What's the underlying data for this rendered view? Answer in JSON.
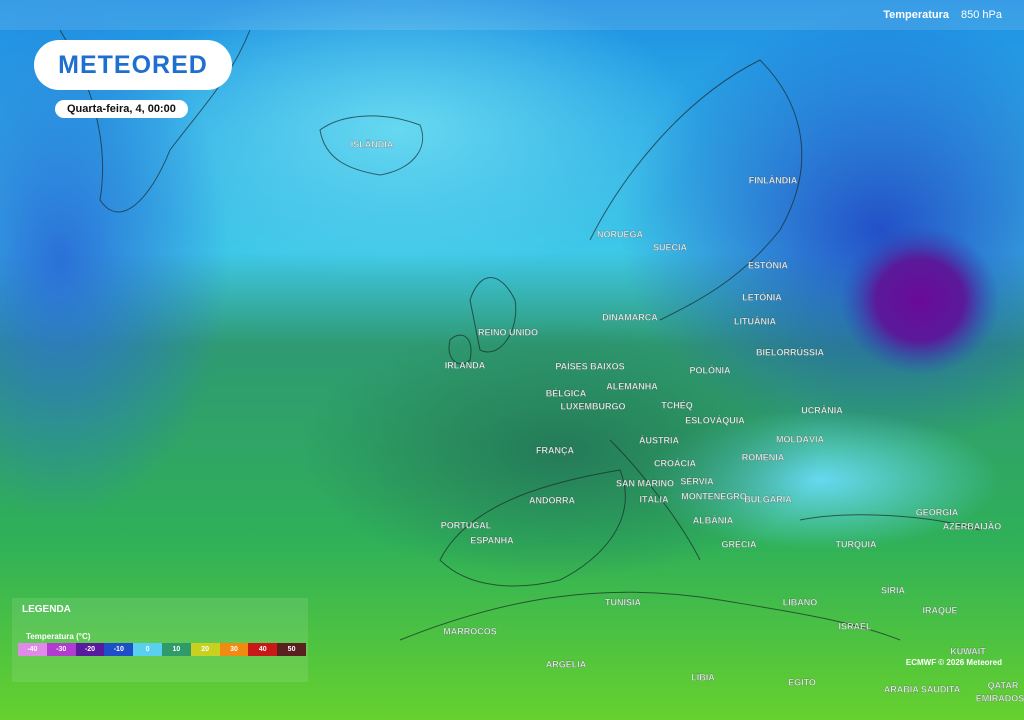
{
  "header": {
    "variable": "Temperatura",
    "level": "850 hPa"
  },
  "logo": "METEORED",
  "date": "Quarta-feira, 4, 00:00",
  "map_labels": [
    "ISLÂNDIA",
    "FINLÂNDIA",
    "NORUEGA",
    "SUÉCIA",
    "ESTÓNIA",
    "LETÓNIA",
    "LITUÂNIA",
    "DINAMARCA",
    "REINO UNIDO",
    "IRLANDA",
    "PAÍSES BAIXOS",
    "BIELORRÚSSIA",
    "POLÓNIA",
    "ALEMANHA",
    "BÉLGICA",
    "LUXEMBURGO",
    "TCHÉQ",
    "ESLOVÁQUIA",
    "UCRÂNIA",
    "FRANÇA",
    "ÁUSTRIA",
    "MOLDÁVIA",
    "CROÁCIA",
    "ROMÉNIA",
    "SÉRVIA",
    "SAN MARINO",
    "MONTENEGRO",
    "BULGÁRIA",
    "ITÁLIA",
    "ANDORRA",
    "ALBÂNIA",
    "GEÓRGIA",
    "AZERBAIJÃO",
    "PORTUGAL",
    "ESPANHA",
    "GRÉCIA",
    "TURQUIA",
    "SÍRIA",
    "LÍBANO",
    "IRAQUE",
    "TUNÍSIA",
    "ISRAEL",
    "KUWAIT",
    "MARROCOS",
    "ARGÉLIA",
    "LÍBIA",
    "EGITO",
    "ARÁBIA SAUDITA",
    "QATAR",
    "EMIRADOS"
  ],
  "legend": {
    "title": "LEGENDA",
    "scale_title": "Temperatura (°C)",
    "ticks": [
      -40,
      -30,
      -20,
      -10,
      0,
      10,
      20,
      30,
      40,
      50
    ]
  },
  "credit": "ECMWF © 2026 Meteored"
}
